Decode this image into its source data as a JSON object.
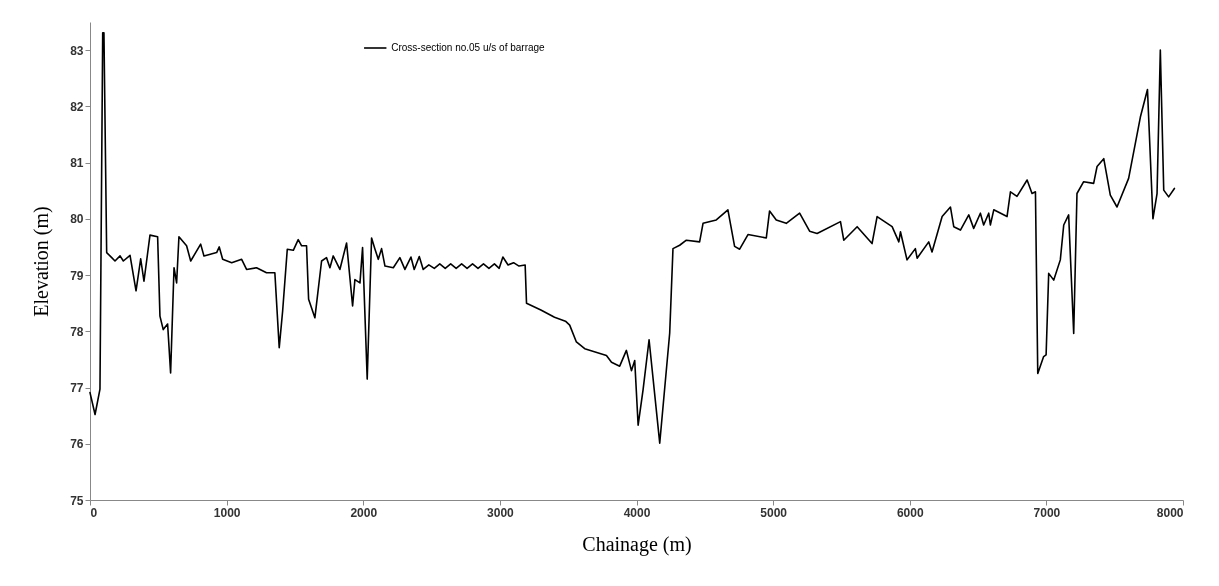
{
  "chart_data": {
    "type": "line",
    "xlabel": "Chainage (m)",
    "ylabel": "Elevation (m)",
    "xlim": [
      0,
      8000
    ],
    "xticks": [
      0,
      1000,
      2000,
      3000,
      4000,
      5000,
      6000,
      7000,
      8000
    ],
    "ylim": [
      75,
      83.5
    ],
    "yticks": [
      75,
      76,
      77,
      78,
      79,
      80,
      81,
      82,
      83
    ],
    "grid": false,
    "legend": "top",
    "marker": "none",
    "line_style": "solid",
    "series": [
      {
        "name": "Cross-section no.05 u/s of barrage",
        "color": "#000000",
        "x": [
          0,
          37,
          73,
          93,
          102,
          122,
          159,
          183,
          220,
          244,
          293,
          337,
          371,
          395,
          439,
          495,
          512,
          536,
          568,
          590,
          615,
          634,
          651,
          707,
          737,
          810,
          834,
          927,
          946,
          971,
          1037,
          1110,
          1146,
          1219,
          1292,
          1353,
          1385,
          1410,
          1444,
          1488,
          1524,
          1549,
          1585,
          1600,
          1646,
          1695,
          1731,
          1756,
          1780,
          1829,
          1878,
          1922,
          1939,
          1976,
          1995,
          2029,
          2061,
          2086,
          2110,
          2134,
          2159,
          2220,
          2268,
          2305,
          2349,
          2373,
          2410,
          2439,
          2480,
          2520,
          2560,
          2600,
          2640,
          2680,
          2720,
          2760,
          2800,
          2840,
          2880,
          2920,
          2960,
          2995,
          3022,
          3060,
          3100,
          3140,
          3185,
          3195,
          3300,
          3400,
          3480,
          3511,
          3560,
          3621,
          3780,
          3817,
          3877,
          3926,
          3963,
          3987,
          4012,
          4048,
          4092,
          4170,
          4243,
          4267,
          4316,
          4365,
          4462,
          4487,
          4584,
          4669,
          4718,
          4755,
          4816,
          4950,
          4974,
          5023,
          5096,
          5194,
          5267,
          5322,
          5493,
          5517,
          5615,
          5724,
          5761,
          5871,
          5920,
          5932,
          5980,
          6041,
          6054,
          6139,
          6163,
          6237,
          6298,
          6322,
          6371,
          6432,
          6468,
          6517,
          6541,
          6578,
          6590,
          6615,
          6712,
          6737,
          6785,
          6859,
          6895,
          6920,
          6937,
          6980,
          6998,
          7017,
          7054,
          7102,
          7127,
          7163,
          7200,
          7224,
          7273,
          7346,
          7371,
          7420,
          7468,
          7517,
          7602,
          7688,
          7740,
          7780,
          7810,
          7834,
          7859,
          7895,
          7937
        ],
        "values": [
          76.91,
          76.52,
          76.97,
          83.31,
          83.31,
          79.4,
          79.31,
          79.25,
          79.34,
          79.25,
          79.35,
          78.72,
          79.29,
          78.89,
          79.71,
          79.68,
          78.27,
          78.03,
          78.13,
          77.26,
          79.13,
          78.86,
          79.68,
          79.52,
          79.25,
          79.55,
          79.34,
          79.4,
          79.5,
          79.28,
          79.22,
          79.28,
          79.1,
          79.13,
          79.04,
          79.04,
          77.71,
          78.36,
          79.46,
          79.44,
          79.63,
          79.52,
          79.52,
          78.57,
          78.24,
          79.25,
          79.31,
          79.13,
          79.34,
          79.1,
          79.57,
          78.45,
          78.92,
          78.86,
          79.49,
          77.15,
          79.66,
          79.46,
          79.28,
          79.47,
          79.16,
          79.13,
          79.31,
          79.1,
          79.32,
          79.1,
          79.33,
          79.1,
          79.18,
          79.12,
          79.2,
          79.12,
          79.2,
          79.12,
          79.2,
          79.12,
          79.2,
          79.12,
          79.2,
          79.12,
          79.2,
          79.12,
          79.32,
          79.18,
          79.22,
          79.16,
          79.18,
          78.5,
          78.38,
          78.25,
          78.18,
          78.11,
          77.81,
          77.69,
          77.57,
          77.45,
          77.38,
          77.66,
          77.3,
          77.48,
          76.33,
          76.96,
          77.85,
          76.01,
          77.97,
          79.47,
          79.53,
          79.62,
          79.59,
          79.92,
          79.98,
          80.16,
          79.51,
          79.46,
          79.72,
          79.66,
          80.14,
          79.98,
          79.92,
          80.1,
          79.78,
          79.74,
          79.95,
          79.62,
          79.86,
          79.56,
          80.04,
          79.86,
          79.59,
          79.77,
          79.27,
          79.47,
          79.3,
          79.59,
          79.41,
          80.04,
          80.21,
          79.86,
          79.8,
          80.07,
          79.83,
          80.1,
          79.89,
          80.1,
          79.89,
          80.16,
          80.04,
          80.48,
          80.4,
          80.69,
          80.45,
          80.48,
          77.25,
          77.55,
          77.58,
          79.03,
          78.91,
          79.27,
          79.89,
          80.07,
          77.96,
          80.45,
          80.66,
          80.63,
          80.93,
          81.07,
          80.42,
          80.21,
          80.72,
          81.81,
          82.3,
          80.0,
          80.45,
          83.0,
          80.51,
          80.39,
          80.54
        ]
      }
    ]
  }
}
